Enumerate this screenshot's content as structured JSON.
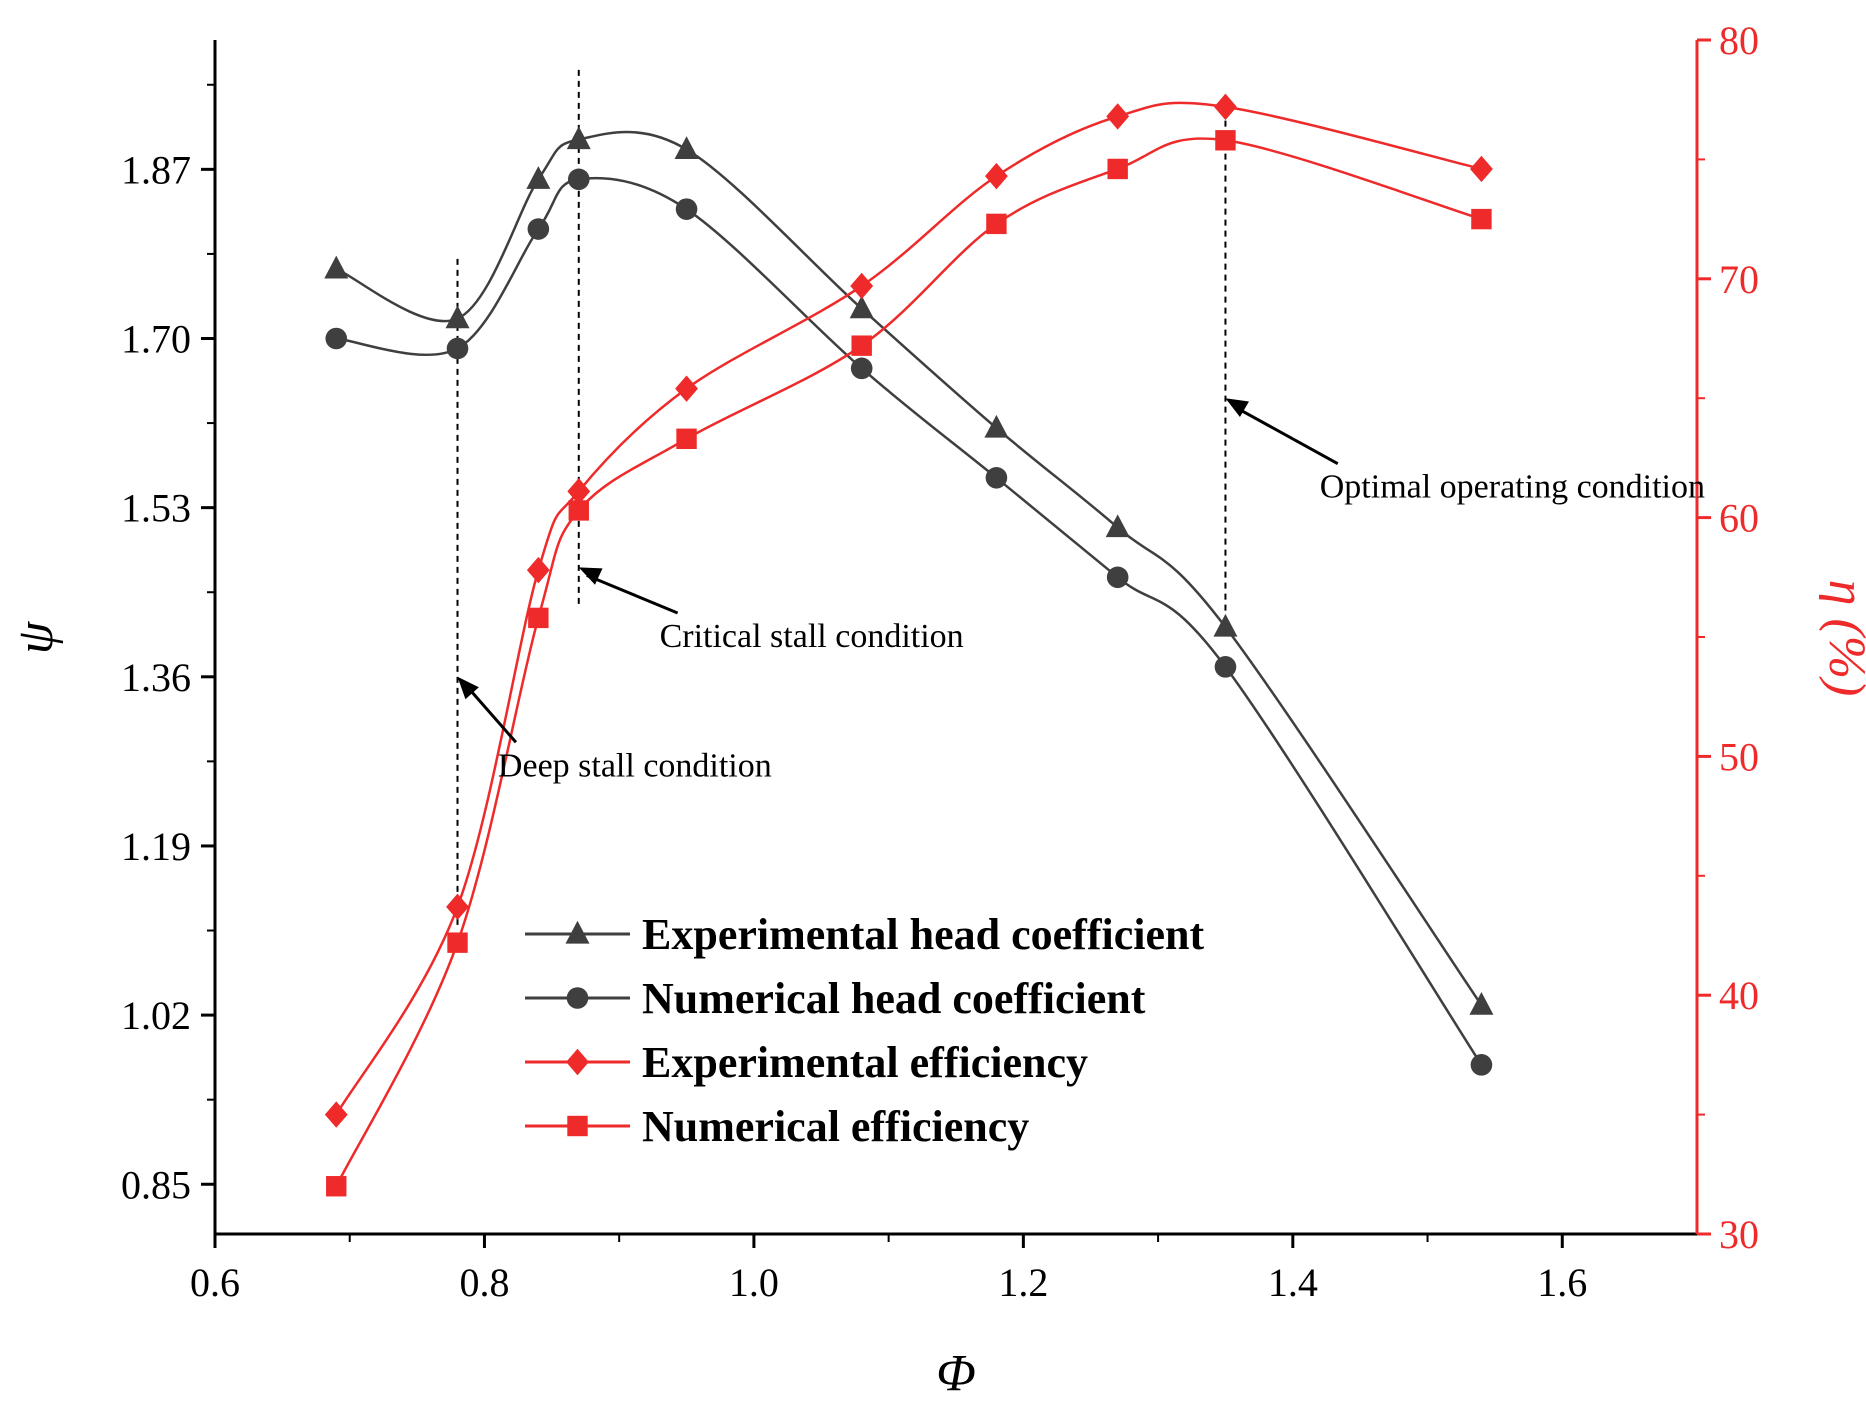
{
  "chart_data": {
    "type": "line",
    "xlabel": "Φ",
    "ylabel": "ψ",
    "y2label": "η (%)",
    "xlim": [
      0.6,
      1.7
    ],
    "ylim": [
      0.8,
      2.0
    ],
    "y2lim": [
      30,
      80
    ],
    "x_ticks": [
      0.6,
      0.8,
      1.0,
      1.2,
      1.4,
      1.6
    ],
    "x_tick_labels": [
      "0.6",
      "0.8",
      "1.0",
      "1.2",
      "1.4",
      "1.6"
    ],
    "y_ticks": [
      0.85,
      1.02,
      1.19,
      1.36,
      1.53,
      1.7,
      1.87
    ],
    "y_tick_labels": [
      "0.85",
      "1.02",
      "1.19",
      "1.36",
      "1.53",
      "1.70",
      "1.87"
    ],
    "y2_ticks": [
      30,
      40,
      50,
      60,
      70,
      80
    ],
    "y2_tick_labels": [
      "30",
      "40",
      "50",
      "60",
      "70",
      "80"
    ],
    "colors": {
      "head": "#3f3f3f",
      "efficiency": "#ee2a2a",
      "right_axis": "#ee2a2a",
      "left_axis": "#000000"
    },
    "grid": false,
    "legend_position": "bottom-center",
    "series": [
      {
        "name": "Experimental head coefficient",
        "axis": "left",
        "marker": "triangle",
        "color": "#3f3f3f",
        "x": [
          0.69,
          0.78,
          0.84,
          0.87,
          0.95,
          1.08,
          1.18,
          1.27,
          1.35,
          1.54
        ],
        "y": [
          1.77,
          1.72,
          1.86,
          1.9,
          1.89,
          1.73,
          1.61,
          1.51,
          1.41,
          1.03
        ]
      },
      {
        "name": "Numerical head coefficient",
        "axis": "left",
        "marker": "circle",
        "color": "#3f3f3f",
        "x": [
          0.69,
          0.78,
          0.84,
          0.87,
          0.95,
          1.08,
          1.18,
          1.27,
          1.35,
          1.54
        ],
        "y": [
          1.7,
          1.69,
          1.81,
          1.86,
          1.83,
          1.67,
          1.56,
          1.46,
          1.37,
          0.97
        ]
      },
      {
        "name": "Experimental efficiency",
        "axis": "right",
        "marker": "diamond",
        "color": "#ee2a2a",
        "x": [
          0.69,
          0.78,
          0.84,
          0.87,
          0.95,
          1.08,
          1.18,
          1.27,
          1.35,
          1.54
        ],
        "y": [
          35.0,
          43.7,
          57.8,
          61.1,
          65.4,
          69.7,
          74.3,
          76.8,
          77.2,
          74.6
        ]
      },
      {
        "name": "Numerical efficiency",
        "axis": "right",
        "marker": "square",
        "color": "#ee2a2a",
        "x": [
          0.69,
          0.78,
          0.84,
          0.87,
          0.95,
          1.08,
          1.18,
          1.27,
          1.35,
          1.54
        ],
        "y": [
          32.0,
          42.2,
          55.8,
          60.3,
          63.3,
          67.2,
          72.3,
          74.6,
          75.8,
          72.5
        ]
      }
    ],
    "reference_lines": [
      {
        "x": 0.78,
        "y_top": 1.78,
        "y_bottom": 1.11
      },
      {
        "x": 0.87,
        "y_top": 1.97,
        "y_bottom": 1.43
      },
      {
        "x": 1.35,
        "y_top": 1.93,
        "y_bottom": 1.41
      }
    ],
    "annotations": [
      {
        "text": "Deep stall condition",
        "target_x": 0.78,
        "target_y": 1.36,
        "text_x": 0.81,
        "text_y": 1.26
      },
      {
        "text": "Critical stall condition",
        "target_x": 0.87,
        "target_y": 1.47,
        "text_x": 0.93,
        "text_y": 1.39
      },
      {
        "text": "Optimal operating condition",
        "target_x": 1.35,
        "target_y": 1.64,
        "text_x": 1.42,
        "text_y": 1.54
      }
    ]
  }
}
